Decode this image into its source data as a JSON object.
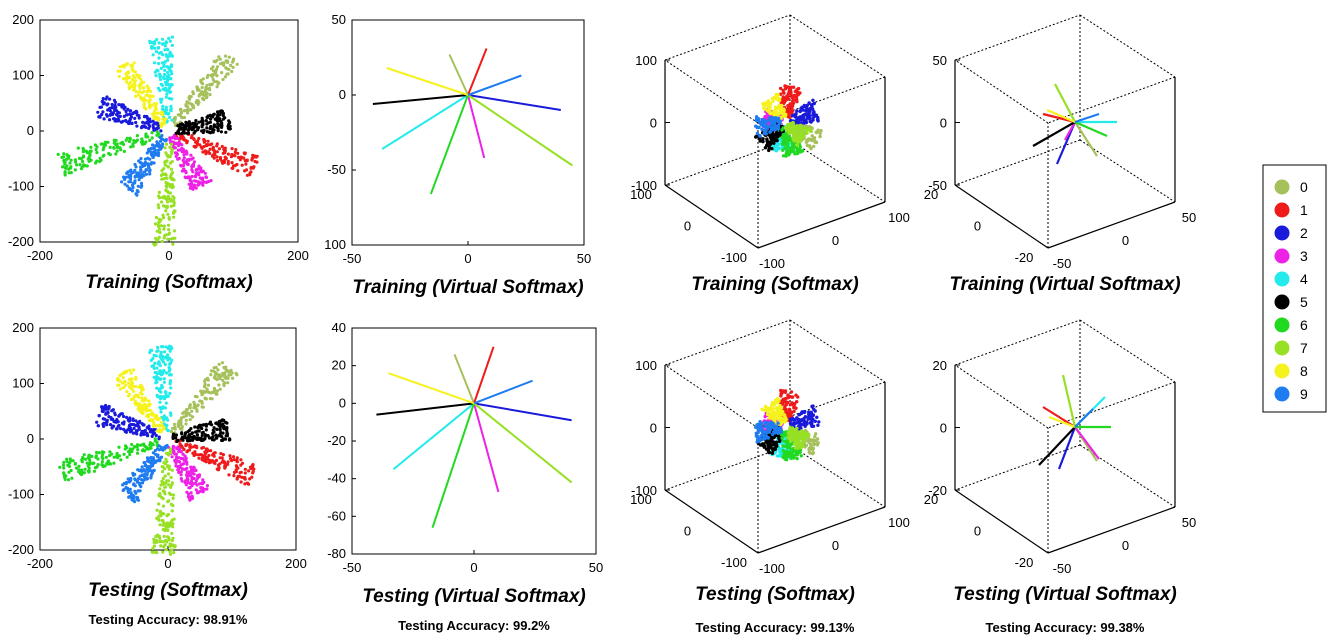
{
  "colors": {
    "0": "#a6c15c",
    "1": "#ef1b1b",
    "2": "#1a1adb",
    "3": "#ee21e6",
    "4": "#23ebeb",
    "5": "#000000",
    "6": "#22d922",
    "7": "#97e024",
    "8": "#f5f21e",
    "9": "#1f7cf0"
  },
  "legend": {
    "placement": "right",
    "entries": [
      "0",
      "1",
      "2",
      "3",
      "4",
      "5",
      "6",
      "7",
      "8",
      "9"
    ]
  },
  "chart_data": [
    {
      "type": "scatter",
      "title": "Training (Softmax)",
      "xlim": [
        -200,
        200
      ],
      "ylim": [
        -200,
        200
      ],
      "xticks": [
        "-200",
        "0",
        "200"
      ],
      "yticks": [
        "200",
        "100",
        "0",
        "-100",
        "-200"
      ],
      "series": [
        {
          "name": "0",
          "angle": 50,
          "len": 150
        },
        {
          "name": "1",
          "angle": -23,
          "len": 145
        },
        {
          "name": "2",
          "angle": 160,
          "len": 115
        },
        {
          "name": "3",
          "angle": -60,
          "len": 100
        },
        {
          "name": "4",
          "angle": 95,
          "len": 145
        },
        {
          "name": "5",
          "angle": 10,
          "len": 95
        },
        {
          "name": "6",
          "angle": -163,
          "len": 175
        },
        {
          "name": "7",
          "angle": -92,
          "len": 180
        },
        {
          "name": "8",
          "angle": 125,
          "len": 125
        },
        {
          "name": "9",
          "angle": -125,
          "len": 110
        }
      ]
    },
    {
      "type": "line",
      "title": "Training (Virtual Softmax)",
      "xlim": [
        -50,
        50
      ],
      "ylim": [
        -100,
        50
      ],
      "xticks": [
        "-50",
        "0",
        "50"
      ],
      "yticks": [
        "50",
        "0",
        "-50",
        "100"
      ],
      "series": [
        {
          "name": "0",
          "end": [
            -8,
            27
          ]
        },
        {
          "name": "1",
          "end": [
            8,
            31
          ]
        },
        {
          "name": "2",
          "end": [
            40,
            -10
          ]
        },
        {
          "name": "3",
          "end": [
            7,
            -42
          ]
        },
        {
          "name": "4",
          "end": [
            -37,
            -36
          ]
        },
        {
          "name": "5",
          "end": [
            -41,
            -6
          ]
        },
        {
          "name": "6",
          "end": [
            -16,
            -66
          ]
        },
        {
          "name": "7",
          "end": [
            45,
            -47
          ]
        },
        {
          "name": "8",
          "end": [
            -35,
            18
          ]
        },
        {
          "name": "9",
          "end": [
            23,
            13
          ]
        }
      ]
    },
    {
      "type": "scatter",
      "title": "Training (Softmax)",
      "yticks": [
        "100",
        "0",
        "-100"
      ],
      "xticks": [
        "100",
        "0",
        "-100"
      ],
      "zticks": [
        "100",
        "0",
        "-100"
      ],
      "series": [
        {
          "name": "0",
          "angle": -30,
          "len": 38
        },
        {
          "name": "1",
          "angle": 80,
          "len": 36
        },
        {
          "name": "2",
          "angle": 20,
          "len": 34
        },
        {
          "name": "3",
          "angle": 170,
          "len": 22
        },
        {
          "name": "4",
          "angle": -100,
          "len": 30
        },
        {
          "name": "5",
          "angle": -135,
          "len": 32
        },
        {
          "name": "6",
          "angle": -75,
          "len": 34
        },
        {
          "name": "7",
          "angle": -40,
          "len": 26
        },
        {
          "name": "8",
          "angle": 125,
          "len": 28
        },
        {
          "name": "9",
          "angle": -170,
          "len": 30
        }
      ]
    },
    {
      "type": "line",
      "title": "Training (Virtual Softmax)",
      "yticks": [
        "50",
        "0",
        "-50"
      ],
      "xticks": [
        "50",
        "0",
        "-50"
      ],
      "zticks": [
        "20",
        "0",
        "-20"
      ],
      "series": [
        {
          "name": "0",
          "end": [
            22,
            -34
          ]
        },
        {
          "name": "1",
          "end": [
            -32,
            8
          ]
        },
        {
          "name": "2",
          "end": [
            -18,
            -42
          ]
        },
        {
          "name": "3",
          "end": [
            -10,
            -18
          ]
        },
        {
          "name": "4",
          "end": [
            42,
            0
          ]
        },
        {
          "name": "5",
          "end": [
            -42,
            -24
          ]
        },
        {
          "name": "6",
          "end": [
            32,
            -14
          ]
        },
        {
          "name": "7",
          "end": [
            -20,
            38
          ]
        },
        {
          "name": "8",
          "end": [
            -28,
            12
          ]
        },
        {
          "name": "9",
          "end": [
            24,
            8
          ]
        }
      ]
    },
    {
      "type": "scatter",
      "title": "Testing (Softmax)",
      "annotation": "Testing Accuracy: 98.91%",
      "xlim": [
        -200,
        200
      ],
      "ylim": [
        -200,
        200
      ],
      "xticks": [
        "-200",
        "0",
        "200"
      ],
      "yticks": [
        "200",
        "100",
        "0",
        "-100",
        "-200"
      ],
      "series": [
        {
          "name": "0",
          "angle": 50,
          "len": 150
        },
        {
          "name": "1",
          "angle": -23,
          "len": 145
        },
        {
          "name": "2",
          "angle": 160,
          "len": 115
        },
        {
          "name": "3",
          "angle": -60,
          "len": 100
        },
        {
          "name": "4",
          "angle": 95,
          "len": 145
        },
        {
          "name": "5",
          "angle": 10,
          "len": 95
        },
        {
          "name": "6",
          "angle": -163,
          "len": 175
        },
        {
          "name": "7",
          "angle": -92,
          "len": 180
        },
        {
          "name": "8",
          "angle": 125,
          "len": 125
        },
        {
          "name": "9",
          "angle": -125,
          "len": 110
        }
      ]
    },
    {
      "type": "line",
      "title": "Testing (Virtual Softmax)",
      "annotation": "Testing Accuracy: 99.2%",
      "xlim": [
        -50,
        50
      ],
      "ylim": [
        -80,
        40
      ],
      "xticks": [
        "-50",
        "0",
        "50"
      ],
      "yticks": [
        "40",
        "20",
        "0",
        "-20",
        "-40",
        "-60",
        "-80"
      ],
      "series": [
        {
          "name": "0",
          "end": [
            -8,
            26
          ]
        },
        {
          "name": "1",
          "end": [
            8,
            30
          ]
        },
        {
          "name": "2",
          "end": [
            40,
            -9
          ]
        },
        {
          "name": "3",
          "end": [
            10,
            -47
          ]
        },
        {
          "name": "4",
          "end": [
            -33,
            -35
          ]
        },
        {
          "name": "5",
          "end": [
            -40,
            -6
          ]
        },
        {
          "name": "6",
          "end": [
            -17,
            -66
          ]
        },
        {
          "name": "7",
          "end": [
            40,
            -42
          ]
        },
        {
          "name": "8",
          "end": [
            -35,
            16
          ]
        },
        {
          "name": "9",
          "end": [
            24,
            12
          ]
        }
      ]
    },
    {
      "type": "scatter",
      "title": "Testing (Softmax)",
      "annotation": "Testing Accuracy: 99.13%",
      "yticks": [
        "100",
        "0",
        "-100"
      ],
      "xticks": [
        "100",
        "0",
        "-100"
      ],
      "zticks": [
        "100",
        "0",
        "-100"
      ],
      "series": [
        {
          "name": "0",
          "angle": -30,
          "len": 38
        },
        {
          "name": "1",
          "angle": 80,
          "len": 36
        },
        {
          "name": "2",
          "angle": 20,
          "len": 34
        },
        {
          "name": "3",
          "angle": 170,
          "len": 22
        },
        {
          "name": "4",
          "angle": -100,
          "len": 30
        },
        {
          "name": "5",
          "angle": -135,
          "len": 32
        },
        {
          "name": "6",
          "angle": -75,
          "len": 34
        },
        {
          "name": "7",
          "angle": -40,
          "len": 26
        },
        {
          "name": "8",
          "angle": 125,
          "len": 28
        },
        {
          "name": "9",
          "angle": -170,
          "len": 30
        }
      ]
    },
    {
      "type": "line",
      "title": "Testing (Virtual Softmax)",
      "annotation": "Testing Accuracy: 99.38%",
      "yticks": [
        "20",
        "0",
        "-20"
      ],
      "xticks": [
        "50",
        "0",
        "-50"
      ],
      "zticks": [
        "20",
        "0",
        "-20"
      ],
      "series": [
        {
          "name": "0",
          "end": [
            22,
            -34
          ]
        },
        {
          "name": "1",
          "end": [
            -32,
            20
          ]
        },
        {
          "name": "2",
          "end": [
            -16,
            -42
          ]
        },
        {
          "name": "3",
          "end": [
            24,
            -32
          ]
        },
        {
          "name": "4",
          "end": [
            30,
            30
          ]
        },
        {
          "name": "5",
          "end": [
            -36,
            -38
          ]
        },
        {
          "name": "6",
          "end": [
            36,
            0
          ]
        },
        {
          "name": "7",
          "end": [
            -12,
            52
          ]
        },
        {
          "name": "8",
          "end": [
            -26,
            10
          ]
        },
        {
          "name": "9",
          "end": [
            18,
            18
          ]
        }
      ]
    }
  ]
}
